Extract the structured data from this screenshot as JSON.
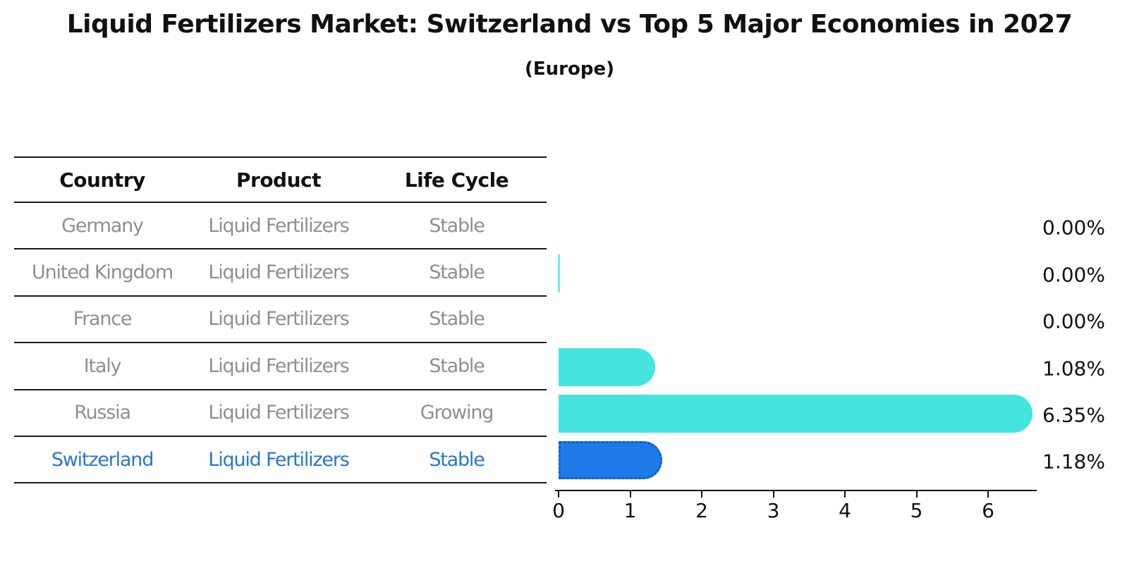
{
  "title": "Liquid Fertilizers Market: Switzerland vs Top 5 Major Economies in 2027",
  "subtitle": "(Europe)",
  "table": {
    "headers": [
      "Country",
      "Product",
      "Life Cycle"
    ],
    "rows": [
      {
        "country": "Germany",
        "product": "Liquid Fertilizers",
        "life_cycle": "Stable",
        "highlighted": false
      },
      {
        "country": "United Kingdom",
        "product": "Liquid Fertilizers",
        "life_cycle": "Stable",
        "highlighted": false
      },
      {
        "country": "France",
        "product": "Liquid Fertilizers",
        "life_cycle": "Stable",
        "highlighted": false
      },
      {
        "country": "Italy",
        "product": "Liquid Fertilizers",
        "life_cycle": "Stable",
        "highlighted": false
      },
      {
        "country": "Russia",
        "product": "Liquid Fertilizers",
        "life_cycle": "Growing",
        "highlighted": false
      },
      {
        "country": "Switzerland",
        "product": "Liquid Fertilizers",
        "life_cycle": "Stable",
        "highlighted": true
      }
    ],
    "text_color": "#8f8f8f",
    "highlight_text_color": "#2478d1"
  },
  "chart_data": {
    "type": "bar",
    "orientation": "horizontal",
    "title": "Liquid Fertilizers Market: Switzerland vs Top 5 Major Economies in 2027",
    "subtitle": "(Europe)",
    "categories": [
      "Germany",
      "United Kingdom",
      "France",
      "Italy",
      "Russia",
      "Switzerland"
    ],
    "values": [
      0.0,
      0.0,
      0.0,
      1.08,
      6.35,
      1.18
    ],
    "value_labels": [
      "0.00%",
      "0.00%",
      "0.00%",
      "1.08%",
      "6.35%",
      "1.18%"
    ],
    "x_ticks": [
      "0",
      "1",
      "2",
      "3",
      "4",
      "5",
      "6"
    ],
    "xlim": [
      0,
      6.65
    ],
    "grid": false,
    "legend": null,
    "bar_color": "#45e4de",
    "highlight_color": "#1e7ae8",
    "highlight_border_color": "#1158cf",
    "highlight_index": 5,
    "zero_sliver_index": 1
  }
}
